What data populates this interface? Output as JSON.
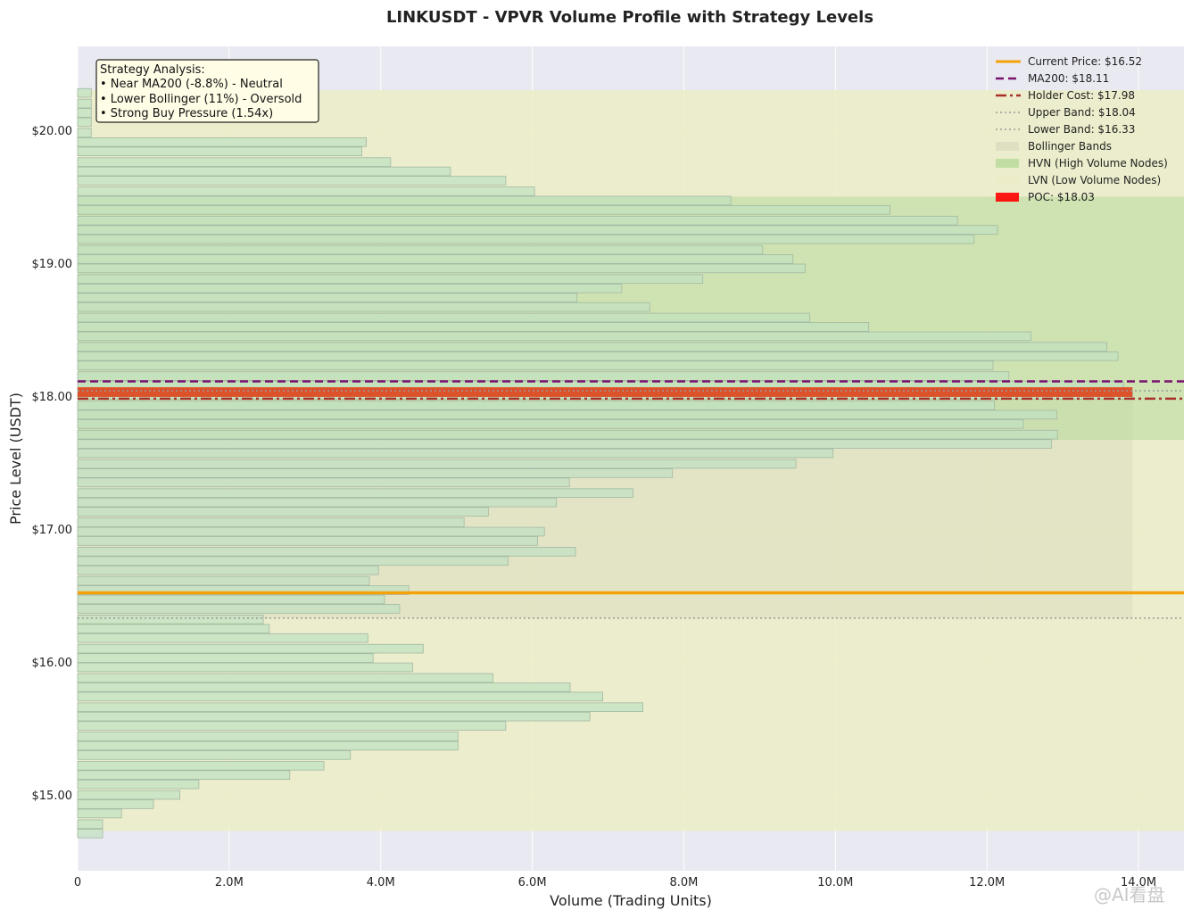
{
  "chart_data": {
    "type": "bar",
    "orientation": "horizontal",
    "title": "LINKUSDT - VPVR Volume Profile with Strategy Levels",
    "xlabel": "Volume (Trading Units)",
    "ylabel": "Price Level (USDT)",
    "xlim": [
      0,
      14600000
    ],
    "ylim": [
      14.43,
      20.63
    ],
    "x_ticks": [
      0,
      2000000,
      4000000,
      6000000,
      8000000,
      10000000,
      12000000,
      14000000
    ],
    "x_tick_labels": [
      "0",
      "2.0M",
      "4.0M",
      "6.0M",
      "8.0M",
      "10.0M",
      "12.0M",
      "14.0M"
    ],
    "y_ticks": [
      15,
      16,
      17,
      18,
      19,
      20
    ],
    "y_tick_labels": [
      "$15.00",
      "$16.00",
      "$17.00",
      "$18.00",
      "$19.00",
      "$20.00"
    ],
    "grid": true,
    "legend_position": "top-right",
    "bin_height": 0.073,
    "price_levels": [
      14.71,
      14.78,
      14.86,
      14.93,
      15.0,
      15.08,
      15.15,
      15.22,
      15.3,
      15.37,
      15.44,
      15.52,
      15.59,
      15.66,
      15.74,
      15.81,
      15.88,
      15.96,
      16.03,
      16.1,
      16.18,
      16.25,
      16.32,
      16.4,
      16.47,
      16.54,
      16.61,
      16.69,
      16.76,
      16.83,
      16.91,
      16.98,
      17.05,
      17.13,
      17.2,
      17.27,
      17.35,
      17.42,
      17.49,
      17.57,
      17.64,
      17.71,
      17.79,
      17.86,
      17.93,
      18.01,
      18.08,
      18.15,
      18.23,
      18.3,
      18.37,
      18.45,
      18.52,
      18.59,
      18.67,
      18.74,
      18.81,
      18.88,
      18.96,
      19.03,
      19.1,
      19.18,
      19.25,
      19.32,
      19.4,
      19.47,
      19.54,
      19.62,
      19.69,
      19.76,
      19.84,
      19.91,
      19.98,
      20.06,
      20.13,
      20.2,
      20.28
    ],
    "volumes": [
      330000,
      330000,
      580000,
      1000000,
      1350000,
      1600000,
      2800000,
      3250000,
      3600000,
      5020000,
      5020000,
      5650000,
      6760000,
      7460000,
      6930000,
      6500000,
      5480000,
      4420000,
      3900000,
      4560000,
      3830000,
      2530000,
      2450000,
      4250000,
      4050000,
      4370000,
      3850000,
      3970000,
      5680000,
      6570000,
      6070000,
      6160000,
      5100000,
      5420000,
      6320000,
      7330000,
      6490000,
      7850000,
      9480000,
      9970000,
      12850000,
      12930000,
      12480000,
      12920000,
      12100000,
      13920000,
      13800000,
      12290000,
      12080000,
      13730000,
      13580000,
      12580000,
      10440000,
      9660000,
      7550000,
      6590000,
      7180000,
      8250000,
      9600000,
      9440000,
      9040000,
      11830000,
      12140000,
      11610000,
      10720000,
      8620000,
      6030000,
      5650000,
      4920000,
      4130000,
      3750000,
      3810000,
      180000,
      180000,
      180000,
      180000,
      180000
    ],
    "poc": {
      "label": "POC: $18.03",
      "price": 18.03,
      "volume": 13920000,
      "color": "#e03a12"
    },
    "hvn_zone": {
      "label": "HVN (High Volume Nodes)",
      "price_range": [
        17.67,
        19.5
      ],
      "color": "#b8d89a"
    },
    "lvn_zone": {
      "label": "LVN (Low Volume Nodes)",
      "price_range": [
        14.73,
        20.3
      ],
      "color": "#ecedc8"
    },
    "bollinger": {
      "label": "Bollinger Bands",
      "price_range": [
        16.33,
        18.04
      ],
      "volume_extent": 13920000,
      "color": "#dcdcc0"
    },
    "lines": [
      {
        "label": "Current Price: $16.52",
        "price": 16.52,
        "color": "#f5a20a",
        "style": "solid",
        "width": 3.5
      },
      {
        "label": "MA200: $18.11",
        "price": 18.11,
        "color": "#7a1270",
        "style": "dashed",
        "width": 2.5
      },
      {
        "label": "Holder Cost: $17.98",
        "price": 17.98,
        "color": "#a8322a",
        "style": "dashdot",
        "width": 2.5
      },
      {
        "label": "Upper Band: $18.04",
        "price": 18.04,
        "color": "#9a9a9a",
        "style": "dotted",
        "width": 1.5
      },
      {
        "label": "Lower Band: $16.33",
        "price": 16.33,
        "color": "#9a9a9a",
        "style": "dotted",
        "width": 1.5
      }
    ],
    "annotation": {
      "title": "Strategy Analysis:",
      "lines": [
        "• Near MA200 (-8.8%) - Neutral",
        "• Lower Bollinger (11%) - Oversold",
        "• Strong Buy Pressure (1.54x)"
      ]
    },
    "colors": {
      "plot_bg": "#e9e9f1",
      "bar_fill": "#c2e2c2",
      "bar_edge": "#a2b8a2"
    }
  },
  "watermark": "@AI看盘"
}
